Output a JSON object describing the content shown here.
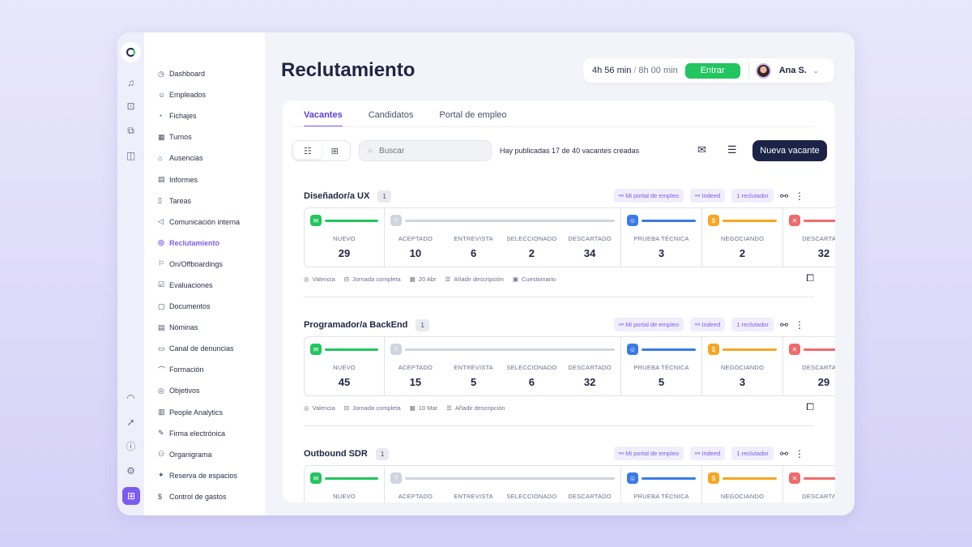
{
  "rail": {
    "icons": [
      "bell-icon",
      "inbox-icon",
      "chat-icon",
      "layout-icon",
      "headset-icon",
      "rocket-icon",
      "info-icon",
      "gear-icon",
      "apps-icon"
    ]
  },
  "sidebar": {
    "items": [
      {
        "label": "Dashboard",
        "icon": "◷"
      },
      {
        "label": "Empleados",
        "icon": "☺"
      },
      {
        "label": "Fichajes",
        "icon": "◔"
      },
      {
        "label": "Turnos",
        "icon": "▦"
      },
      {
        "label": "Ausencias",
        "icon": "⌂"
      },
      {
        "label": "Informes",
        "icon": "▤"
      },
      {
        "label": "Tareas",
        "icon": "▯"
      },
      {
        "label": "Comunicación interna",
        "icon": "◁"
      },
      {
        "label": "Reclutamiento",
        "icon": "◎",
        "active": true
      },
      {
        "label": "On/Offboardings",
        "icon": "⚐"
      },
      {
        "label": "Evaluaciones",
        "icon": "☑"
      },
      {
        "label": "Documentos",
        "icon": "▢"
      },
      {
        "label": "Nóminas",
        "icon": "▤"
      },
      {
        "label": "Canal de denuncias",
        "icon": "▭"
      },
      {
        "label": "Formación",
        "icon": "⌒"
      },
      {
        "label": "Objetivos",
        "icon": "◎"
      },
      {
        "label": "People Analytics",
        "icon": "▥"
      },
      {
        "label": "Firma electrónica",
        "icon": "✎"
      },
      {
        "label": "Organigrama",
        "icon": "⚇"
      },
      {
        "label": "Reserva de espacios",
        "icon": "✦"
      },
      {
        "label": "Control de gastos",
        "icon": "$"
      }
    ]
  },
  "header": {
    "title": "Reclutamiento",
    "time_worked": "4h 56 min",
    "time_separator": "/",
    "time_total": "8h 00 min",
    "clock_in": "Entrar",
    "user": "Ana S."
  },
  "tabs": [
    "Vacantes",
    "Candidatos",
    "Portal de empleo"
  ],
  "toolbar": {
    "search_placeholder": "Buscar",
    "info": "Hay publicadas 17 de 40 vacantes creadas",
    "new_button": "Nueva vacante"
  },
  "colors": {
    "nuevo": "#22c55e",
    "proceso": "#cfd5e0",
    "prueba": "#3b7be8",
    "negociando": "#f5a623",
    "descartado": "#ef6b6b",
    "accent": "#7c5cf0"
  },
  "jobs": [
    {
      "title": "Diseñador/a UX",
      "count": "1",
      "tags": [
        "Mi portal de empleo",
        "Indeed",
        "1 reclutador"
      ],
      "stages": {
        "nuevo": "29",
        "aceptado": "10",
        "entrevista": "6",
        "seleccionado": "2",
        "descartado": "34",
        "prueba": "3",
        "negociando": "2",
        "descartado2": "32"
      },
      "meta": [
        "Valencia",
        "Jornada completa",
        "20 Abr",
        "Añadir descripción",
        "Cuestionario"
      ]
    },
    {
      "title": "Programador/a BackEnd",
      "count": "1",
      "tags": [
        "Mi portal de empleo",
        "Indeed",
        "1 reclutador"
      ],
      "stages": {
        "nuevo": "45",
        "aceptado": "15",
        "entrevista": "5",
        "seleccionado": "6",
        "descartado": "32",
        "prueba": "5",
        "negociando": "3",
        "descartado2": "29"
      },
      "meta": [
        "Valencia",
        "Jornada completa",
        "10 Mar",
        "Añadir descripción"
      ]
    },
    {
      "title": "Outbound SDR",
      "count": "1",
      "tags": [
        "Mi portal de empleo",
        "Indeed",
        "1 reclutador"
      ],
      "stages": {},
      "meta": []
    }
  ],
  "stage_labels": {
    "nuevo": "NUEVO",
    "aceptado": "ACEPTADO",
    "entrevista": "ENTREVISTA",
    "seleccionado": "SELECCIONADO",
    "descartado": "DESCARTADO",
    "prueba": "PRUEBA TÉCNICA",
    "negociando": "NEGOCIANDO",
    "descartado2": "DESCARTADO"
  }
}
